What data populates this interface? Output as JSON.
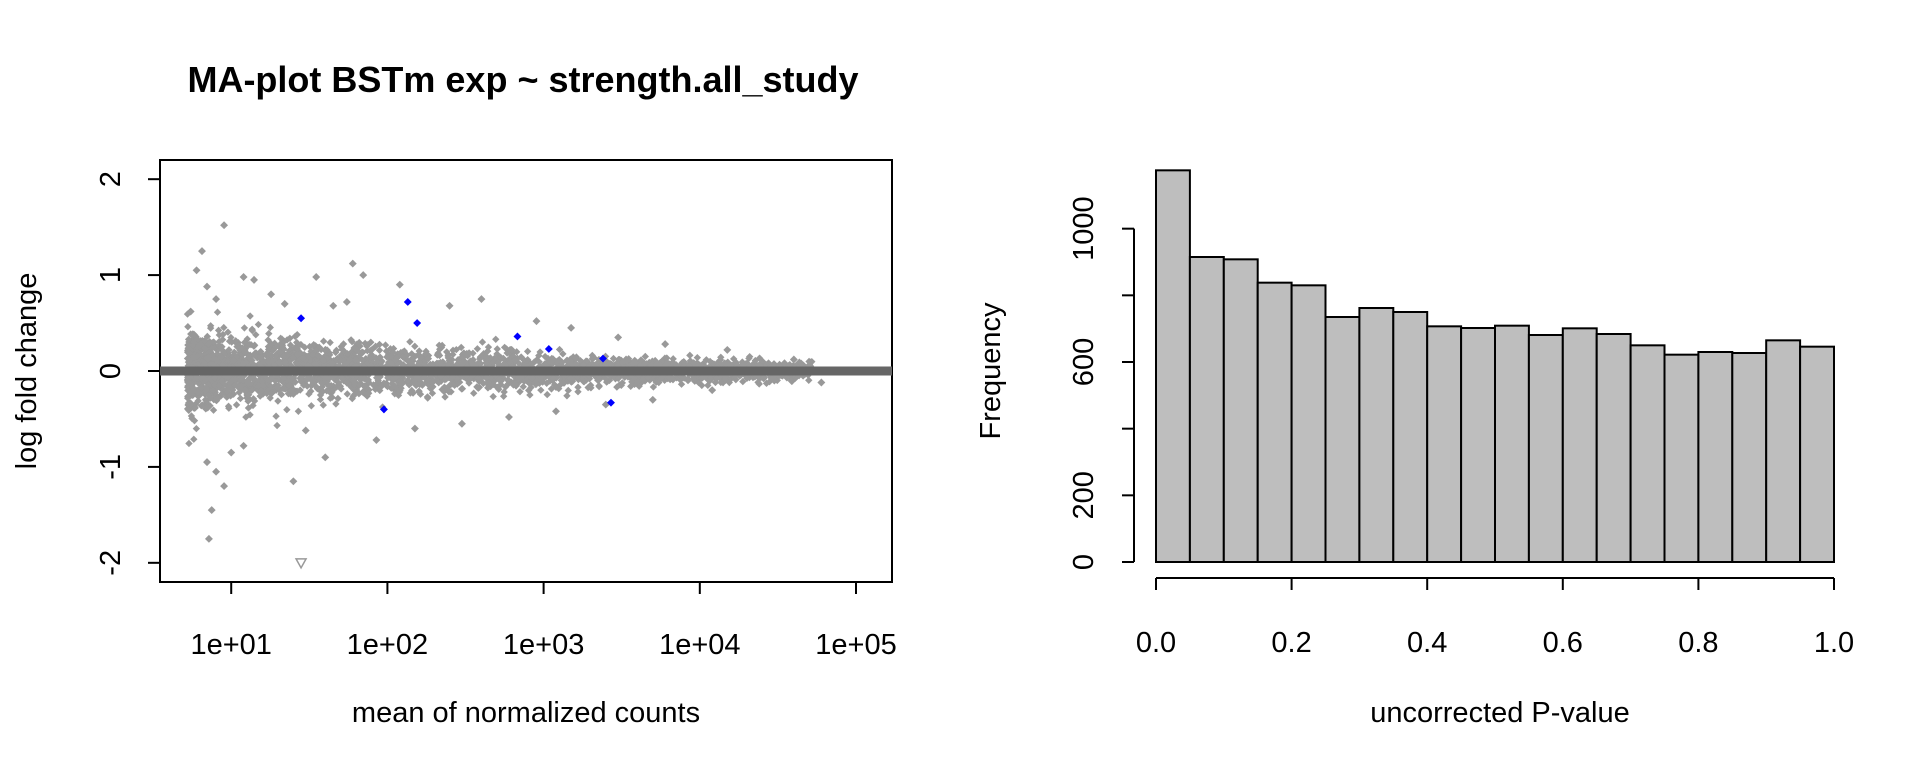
{
  "chart_data": [
    {
      "type": "scatter",
      "title": "MA-plot BSTm exp ~ strength.all_study",
      "xlabel": "mean of normalized counts",
      "ylabel": "log fold change",
      "xscale": "log10",
      "xlim": [
        3.5,
        170000
      ],
      "ylim": [
        -2.2,
        2.2
      ],
      "xticks": [
        10,
        100,
        1000,
        10000,
        100000
      ],
      "xtick_labels": [
        "1e+01",
        "1e+02",
        "1e+03",
        "1e+04",
        "1e+05"
      ],
      "yticks": [
        -2,
        -1,
        0,
        1,
        2
      ],
      "ytick_labels": [
        "-2",
        "-1",
        "0",
        "1",
        "2"
      ],
      "hline": {
        "y": 0,
        "color": "#666666"
      },
      "series": [
        {
          "role": "non-significant",
          "color": "#999999",
          "marker": "diamond",
          "points": [
            [
              6.5,
              1.25
            ],
            [
              6.0,
              1.05
            ],
            [
              9.0,
              1.52
            ],
            [
              12.0,
              0.98
            ],
            [
              7.0,
              0.88
            ],
            [
              8.0,
              0.75
            ],
            [
              14.0,
              0.95
            ],
            [
              5.5,
              0.62
            ],
            [
              18.0,
              0.8
            ],
            [
              22.0,
              0.7
            ],
            [
              35.0,
              0.98
            ],
            [
              60.0,
              1.12
            ],
            [
              70.0,
              1.0
            ],
            [
              45.0,
              0.68
            ],
            [
              55.0,
              0.72
            ],
            [
              120.0,
              0.9
            ],
            [
              250.0,
              0.68
            ],
            [
              400.0,
              0.75
            ],
            [
              900.0,
              0.52
            ],
            [
              1500.0,
              0.45
            ],
            [
              3000.0,
              0.35
            ],
            [
              6000.0,
              0.28
            ],
            [
              15000.0,
              0.22
            ],
            [
              40000.0,
              0.12
            ],
            [
              7.0,
              -0.95
            ],
            [
              8.0,
              -1.05
            ],
            [
              9.0,
              -1.2
            ],
            [
              7.5,
              -1.45
            ],
            [
              7.2,
              -1.75
            ],
            [
              10.0,
              -0.85
            ],
            [
              12.0,
              -0.78
            ],
            [
              25.0,
              -1.15
            ],
            [
              30.0,
              -0.62
            ],
            [
              40.0,
              -0.9
            ],
            [
              85.0,
              -0.72
            ],
            [
              150.0,
              -0.6
            ],
            [
              300.0,
              -0.55
            ],
            [
              600.0,
              -0.48
            ],
            [
              1200.0,
              -0.42
            ],
            [
              2500.0,
              -0.35
            ],
            [
              5000.0,
              -0.3
            ],
            [
              12000.0,
              -0.2
            ],
            [
              30000.0,
              -0.1
            ],
            [
              60000.0,
              -0.12
            ]
          ]
        },
        {
          "role": "significant",
          "color": "#0000ff",
          "marker": "diamond",
          "points": [
            [
              135,
              0.72
            ],
            [
              155,
              0.5
            ],
            [
              28,
              0.55
            ],
            [
              680,
              0.36
            ],
            [
              1080,
              0.23
            ],
            [
              2400,
              0.13
            ],
            [
              95,
              -0.4
            ],
            [
              2700,
              -0.33
            ]
          ]
        },
        {
          "role": "out-of-range",
          "color": "#999999",
          "marker": "triangle-down",
          "points": [
            [
              28,
              -2.0
            ]
          ]
        }
      ]
    },
    {
      "type": "bar",
      "subtype": "histogram",
      "title": "",
      "xlabel": "uncorrected P-value",
      "ylabel": "Frequency",
      "xlim": [
        0,
        1
      ],
      "ylim": [
        0,
        1200
      ],
      "bin_edges": [
        0,
        0.05,
        0.1,
        0.15,
        0.2,
        0.25,
        0.3,
        0.35,
        0.4,
        0.45,
        0.5,
        0.55,
        0.6,
        0.65,
        0.7,
        0.75,
        0.8,
        0.85,
        0.9,
        0.95,
        1.0
      ],
      "values": [
        1175,
        915,
        908,
        838,
        830,
        735,
        762,
        750,
        707,
        702,
        709,
        681,
        701,
        684,
        650,
        622,
        630,
        627,
        665,
        646
      ],
      "xticks": [
        0,
        0.2,
        0.4,
        0.6,
        0.8,
        1.0
      ],
      "xtick_labels": [
        "0.0",
        "0.2",
        "0.4",
        "0.6",
        "0.8",
        "1.0"
      ],
      "yticks": [
        0,
        200,
        600,
        1000
      ],
      "ytick_labels": [
        "0",
        "200",
        "600",
        "1000"
      ],
      "yticks_unlabeled": [
        400,
        800
      ],
      "bar_color": "#bebebe"
    }
  ]
}
